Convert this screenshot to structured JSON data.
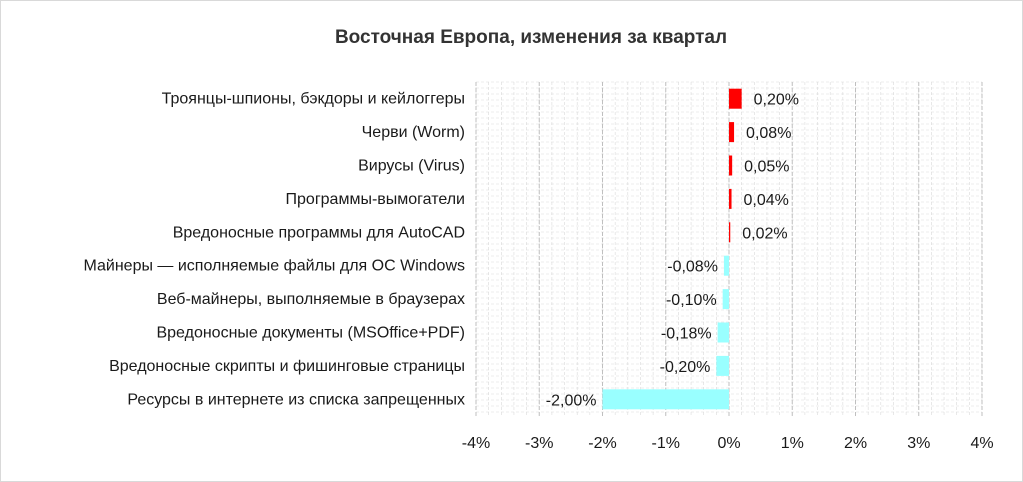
{
  "chart_data": {
    "type": "bar",
    "orientation": "horizontal",
    "title": "Восточная Европа, изменения за квартал",
    "categories": [
      "Троянцы-шпионы, бэкдоры и кейлоггеры",
      "Черви (Worm)",
      "Вирусы (Virus)",
      "Программы-вымогатели",
      "Вредоносные программы для AutoCAD",
      "Майнеры — исполняемые файлы для ОС Windows",
      "Веб-майнеры, выполняемые в браузерах",
      "Вредоносные документы (MSOffice+PDF)",
      "Вредоносные скрипты и фишинговые страницы",
      "Ресурсы в интернете из списка запрещенных"
    ],
    "values": [
      0.2,
      0.08,
      0.05,
      0.04,
      0.02,
      -0.08,
      -0.1,
      -0.18,
      -0.2,
      -2.0
    ],
    "data_labels": [
      "0,20%",
      "0,08%",
      "0,05%",
      "0,04%",
      "0,02%",
      "-0,08%",
      "-0,10%",
      "-0,18%",
      "-0,20%",
      "-2,00%"
    ],
    "xlim": [
      -4,
      4
    ],
    "x_ticks": [
      -4,
      -3,
      -2,
      -1,
      0,
      1,
      2,
      3,
      4
    ],
    "x_tick_labels": [
      "-4%",
      "-3%",
      "-2%",
      "-1%",
      "0%",
      "1%",
      "2%",
      "3%",
      "4%"
    ],
    "grid": true,
    "legend": "none",
    "colors": {
      "positive": "#ff0000",
      "negative": "#99ffff",
      "grid": "#d9d9d9"
    }
  }
}
